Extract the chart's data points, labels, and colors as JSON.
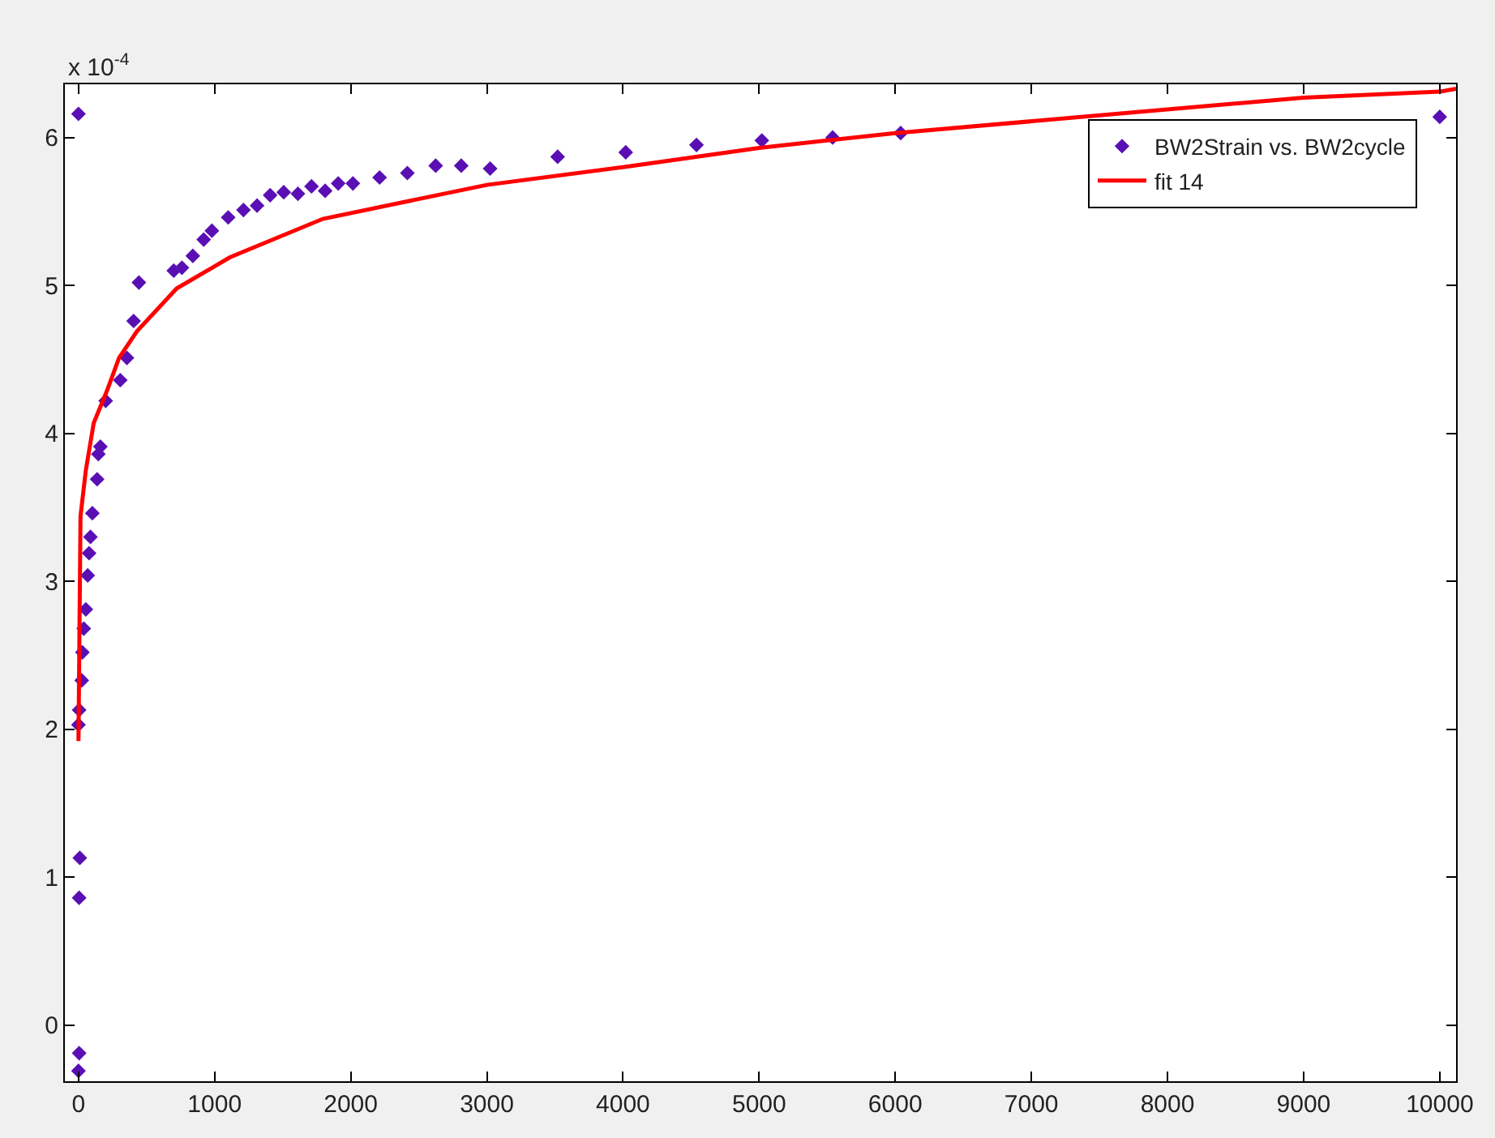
{
  "chart_data": {
    "type": "scatter",
    "series": [
      {
        "name": "BW2Strain vs. BW2cycle",
        "color": "#5a0fb4",
        "marker": "diamond",
        "x": [
          0,
          444,
          405,
          356,
          307,
          200,
          161,
          146,
          137,
          102,
          88,
          78,
          68,
          54,
          39,
          29,
          24,
          5,
          0,
          10,
          5,
          5,
          0,
          700,
          760,
          840,
          920,
          980,
          1100,
          1212,
          1312,
          1408,
          1508,
          1612,
          1712,
          1812,
          1908,
          2016,
          2212,
          2416,
          2624,
          2812,
          3024,
          3520,
          4020,
          4540,
          5020,
          5540,
          6040,
          10000
        ],
        "values": [
          6.16,
          5.02,
          4.76,
          4.51,
          4.36,
          4.22,
          3.91,
          3.86,
          3.69,
          3.46,
          3.3,
          3.19,
          3.04,
          2.81,
          2.68,
          2.52,
          2.33,
          2.13,
          2.03,
          1.13,
          0.86,
          -0.19,
          -0.31,
          5.1,
          5.12,
          5.2,
          5.31,
          5.37,
          5.46,
          5.51,
          5.54,
          5.61,
          5.63,
          5.62,
          5.67,
          5.64,
          5.69,
          5.69,
          5.73,
          5.76,
          5.81,
          5.81,
          5.79,
          5.87,
          5.9,
          5.95,
          5.98,
          6.0,
          6.03,
          6.14
        ]
      },
      {
        "name": "fit 14",
        "type": "line",
        "color": "#ff0000",
        "marker": "none",
        "line_style": "solid",
        "x": [
          0,
          15,
          54,
          112,
          210,
          298,
          429,
          722,
          1112,
          1795,
          3000,
          4000,
          5000,
          6000,
          9000,
          10000,
          10120
        ],
        "values": [
          1.92,
          3.44,
          3.75,
          4.07,
          4.29,
          4.51,
          4.69,
          4.98,
          5.19,
          5.45,
          5.68,
          5.8,
          5.93,
          6.03,
          6.27,
          6.31,
          6.33
        ]
      }
    ],
    "xlim": [
      -100,
      10120
    ],
    "xticks": [
      0,
      1000,
      2000,
      3000,
      4000,
      5000,
      6000,
      7000,
      8000,
      9000,
      10000
    ],
    "ylim": [
      -0.38,
      6.36
    ],
    "yticks": [
      0,
      1,
      2,
      3,
      4,
      5,
      6
    ],
    "annotations": [
      "x 10$^{-4}$"
    ],
    "legend": "top right"
  }
}
